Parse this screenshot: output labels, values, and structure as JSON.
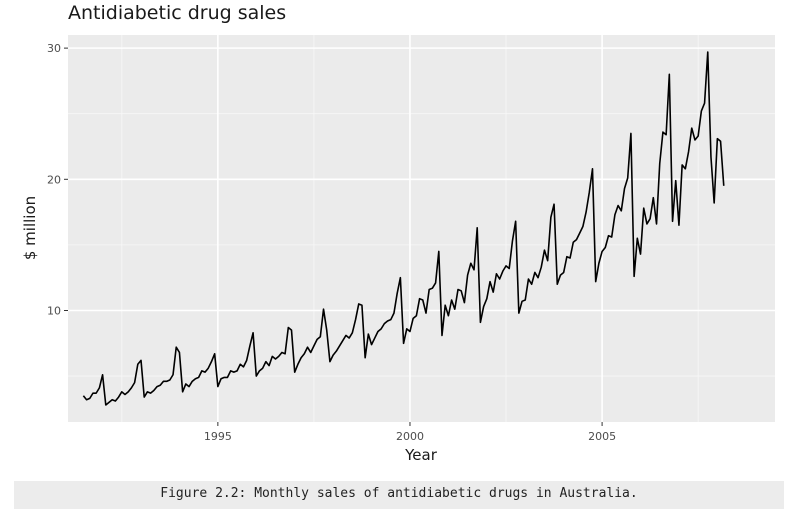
{
  "chart_data": {
    "type": "line",
    "title": "Antidiabetic drug sales",
    "xlabel": "Year",
    "ylabel": "$ million",
    "xlim": [
      1991.1,
      2009.5
    ],
    "ylim": [
      1.5,
      31.0
    ],
    "x_ticks": [
      1995,
      2000,
      2005
    ],
    "y_ticks": [
      10,
      20,
      30
    ],
    "x_tick_labels": [
      "1995",
      "2000",
      "2005"
    ],
    "y_tick_labels": [
      "10",
      "20",
      "30"
    ],
    "grid": true,
    "legend": "none",
    "series_color": "#000000",
    "panel_background": "#ebebeb",
    "start": "1991-07",
    "frequency": "monthly",
    "series": [
      {
        "values": [
          3.5,
          3.2,
          3.3,
          3.7,
          3.7,
          4.1,
          5.1,
          2.8,
          3.0,
          3.2,
          3.1,
          3.4,
          3.8,
          3.6,
          3.8,
          4.1,
          4.5,
          5.9,
          6.2,
          3.4,
          3.8,
          3.7,
          3.9,
          4.2,
          4.3,
          4.6,
          4.6,
          4.7,
          5.1,
          7.2,
          6.8,
          3.8,
          4.4,
          4.2,
          4.6,
          4.8,
          4.9,
          5.4,
          5.3,
          5.6,
          6.1,
          6.7,
          4.2,
          4.8,
          4.9,
          4.9,
          5.4,
          5.3,
          5.4,
          5.9,
          5.7,
          6.2,
          7.3,
          8.3,
          5.0,
          5.4,
          5.6,
          6.1,
          5.8,
          6.5,
          6.3,
          6.5,
          6.8,
          6.7,
          8.7,
          8.5,
          5.3,
          5.9,
          6.4,
          6.7,
          7.2,
          6.8,
          7.3,
          7.8,
          8.0,
          10.1,
          8.5,
          6.1,
          6.6,
          6.9,
          7.3,
          7.7,
          8.1,
          7.9,
          8.3,
          9.3,
          10.5,
          10.4,
          6.4,
          8.2,
          7.4,
          7.9,
          8.4,
          8.6,
          9.0,
          9.2,
          9.3,
          9.8,
          11.3,
          12.5,
          7.5,
          8.6,
          8.4,
          9.4,
          9.6,
          10.9,
          10.8,
          9.8,
          11.6,
          11.7,
          12.1,
          14.5,
          8.1,
          10.4,
          9.6,
          10.8,
          10.1,
          11.6,
          11.5,
          10.6,
          12.7,
          13.6,
          13.1,
          16.3,
          9.1,
          10.3,
          10.9,
          12.2,
          11.4,
          12.8,
          12.4,
          13.0,
          13.4,
          13.2,
          15.3,
          16.8,
          9.8,
          10.7,
          10.8,
          12.4,
          12.0,
          12.9,
          12.5,
          13.3,
          14.6,
          13.8,
          17.1,
          18.1,
          12.0,
          12.7,
          12.9,
          14.1,
          14.0,
          15.2,
          15.4,
          15.9,
          16.4,
          17.5,
          19.0,
          20.8,
          12.2,
          13.6,
          14.5,
          14.8,
          15.7,
          15.6,
          17.3,
          18.0,
          17.6,
          19.3,
          20.1,
          23.5,
          12.6,
          15.5,
          14.3,
          17.8,
          16.6,
          17.0,
          18.6,
          16.6,
          21.2,
          23.6,
          23.4,
          28.0,
          16.8,
          19.9,
          16.5,
          21.1,
          20.8,
          22.1,
          23.9,
          23.0,
          23.3,
          25.2,
          25.8,
          29.7,
          21.7,
          18.2,
          23.1,
          22.9,
          19.5
        ]
      }
    ]
  },
  "caption": "Figure 2.2: Monthly sales of antidiabetic drugs in Australia."
}
